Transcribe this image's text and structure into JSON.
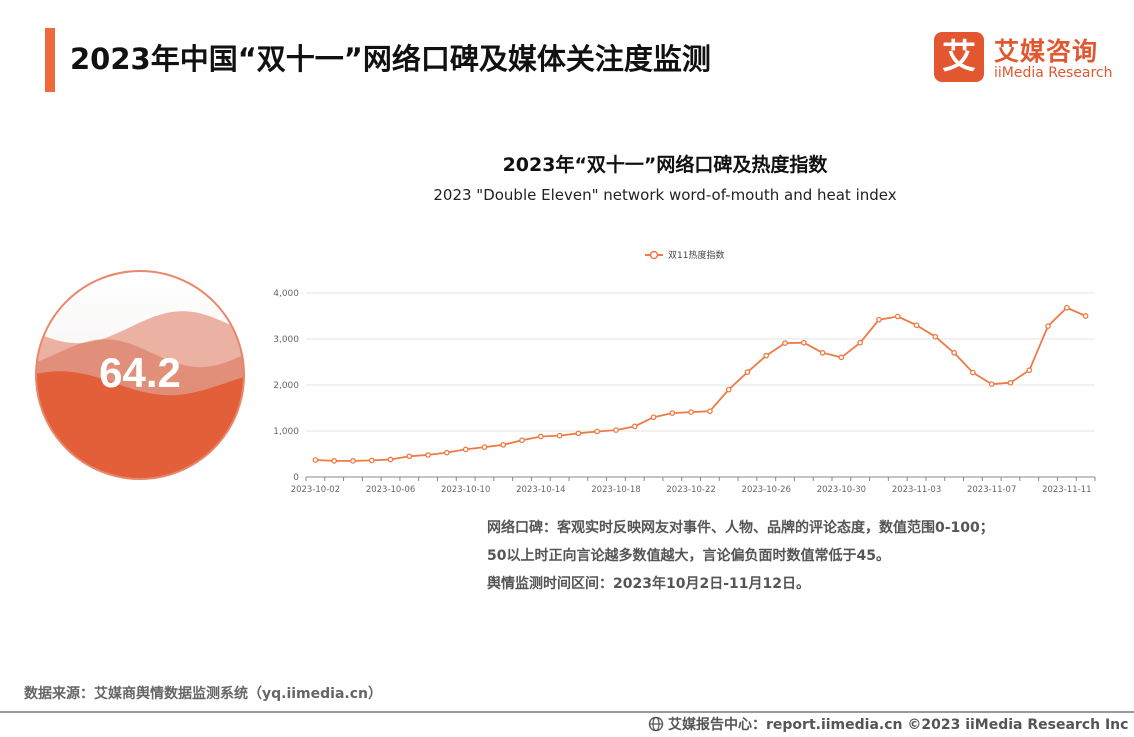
{
  "header": {
    "title": "2023年中国“双十一”网络口碑及媒体关注度监测"
  },
  "logo": {
    "mark": "艾",
    "name_cn": "艾媒咨询",
    "name_en": "iiMedia Research"
  },
  "gauge": {
    "value_text": "64.2",
    "level": 0.642
  },
  "chart_data": {
    "type": "line",
    "title": "2023年“双十一”网络口碑及热度指数",
    "subtitle": "2023 \"Double Eleven\" network word-of-mouth and heat index",
    "legend_position": "top-center",
    "grid": true,
    "x": [
      "2023-10-02",
      "2023-10-03",
      "2023-10-04",
      "2023-10-05",
      "2023-10-06",
      "2023-10-07",
      "2023-10-08",
      "2023-10-09",
      "2023-10-10",
      "2023-10-11",
      "2023-10-12",
      "2023-10-13",
      "2023-10-14",
      "2023-10-15",
      "2023-10-16",
      "2023-10-17",
      "2023-10-18",
      "2023-10-19",
      "2023-10-20",
      "2023-10-21",
      "2023-10-22",
      "2023-10-23",
      "2023-10-24",
      "2023-10-25",
      "2023-10-26",
      "2023-10-27",
      "2023-10-28",
      "2023-10-29",
      "2023-10-30",
      "2023-10-31",
      "2023-11-01",
      "2023-11-02",
      "2023-11-03",
      "2023-11-04",
      "2023-11-05",
      "2023-11-06",
      "2023-11-07",
      "2023-11-08",
      "2023-11-09",
      "2023-11-10",
      "2023-11-11",
      "2023-11-12"
    ],
    "xticks": [
      "2023-10-02",
      "2023-10-06",
      "2023-10-10",
      "2023-10-14",
      "2023-10-18",
      "2023-10-22",
      "2023-10-26",
      "2023-10-30",
      "2023-11-03",
      "2023-11-07",
      "2023-11-11"
    ],
    "ylim": [
      0,
      4000
    ],
    "yticks": [
      "0",
      "1,000",
      "2,000",
      "3,000",
      "4,000"
    ],
    "ytick_values": [
      0,
      1000,
      2000,
      3000,
      4000
    ],
    "series": [
      {
        "name": "双11热度指数",
        "color": "#ee7b45",
        "values": [
          370,
          350,
          350,
          360,
          380,
          450,
          480,
          530,
          600,
          650,
          700,
          800,
          880,
          900,
          950,
          990,
          1020,
          1100,
          1300,
          1390,
          1410,
          1430,
          1900,
          2280,
          2640,
          2910,
          2920,
          2700,
          2600,
          2920,
          3420,
          3490,
          3300,
          3050,
          2700,
          2270,
          2020,
          2050,
          2320,
          3280,
          3680,
          3500
        ]
      }
    ]
  },
  "notes": {
    "line1": "网络口碑：客观实时反映网友对事件、人物、品牌的评论态度，数值范围0-100；",
    "line2": "50以上时正向言论越多数值越大，言论偏负面时数值常低于45。",
    "line3": "舆情监测时间区间：2023年10月2日-11月12日。"
  },
  "footer": {
    "source": "数据来源：艾媒商舆情数据监测系统（yq.iimedia.cn）",
    "copyright": "艾媒报告中心：report.iimedia.cn  ©2023  iiMedia Research  Inc"
  },
  "colors": {
    "accent": "#ee6a3a",
    "brand": "#e2572f",
    "line": "#ee7b45"
  }
}
